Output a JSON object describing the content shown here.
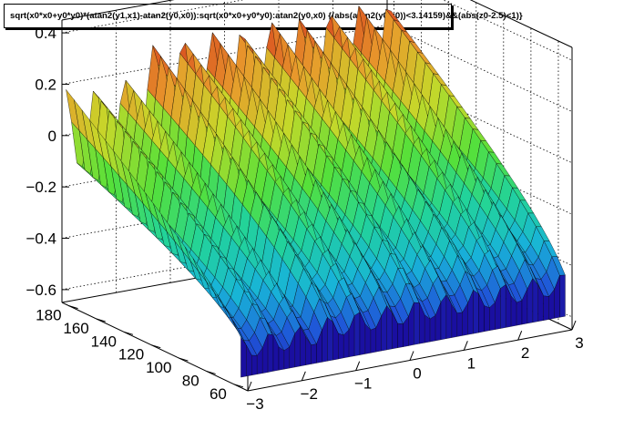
{
  "chart_data": {
    "type": "surface",
    "title": "sqrt(x0*x0+y0*y0)*(atan2(y1,x1)-atan2(y0,x0)):sqrt(x0*x0+y0*y0):atan2(y0,x0) {(abs(atan2(y0,x0))<3.14159)&&(abs(z0-2.5)<1)}",
    "x_axis": {
      "range": [
        -3,
        3
      ],
      "ticks": [
        -3,
        -2,
        -1,
        0,
        1,
        2,
        3
      ],
      "labels": [
        "−3",
        "−2",
        "−1",
        "0",
        "1",
        "2",
        "3"
      ]
    },
    "y_axis": {
      "range": [
        50,
        185
      ],
      "ticks": [
        60,
        80,
        100,
        120,
        140,
        160,
        180
      ],
      "labels": [
        "60",
        "80",
        "100",
        "120",
        "140",
        "160",
        "180"
      ]
    },
    "z_axis": {
      "range": [
        -0.65,
        0.45
      ],
      "ticks": [
        -0.6,
        -0.4,
        -0.2,
        0,
        0.2,
        0.4
      ],
      "labels": [
        "−0.6",
        "−0.4",
        "−0.2",
        "0",
        "0.2",
        "0.4"
      ]
    },
    "grid": true,
    "colormap": [
      "#1a0fa0",
      "#1f55d8",
      "#18b4d8",
      "#22d39a",
      "#55e03a",
      "#c6d82a",
      "#e89a2c",
      "#d6401e",
      "#b51414"
    ]
  }
}
